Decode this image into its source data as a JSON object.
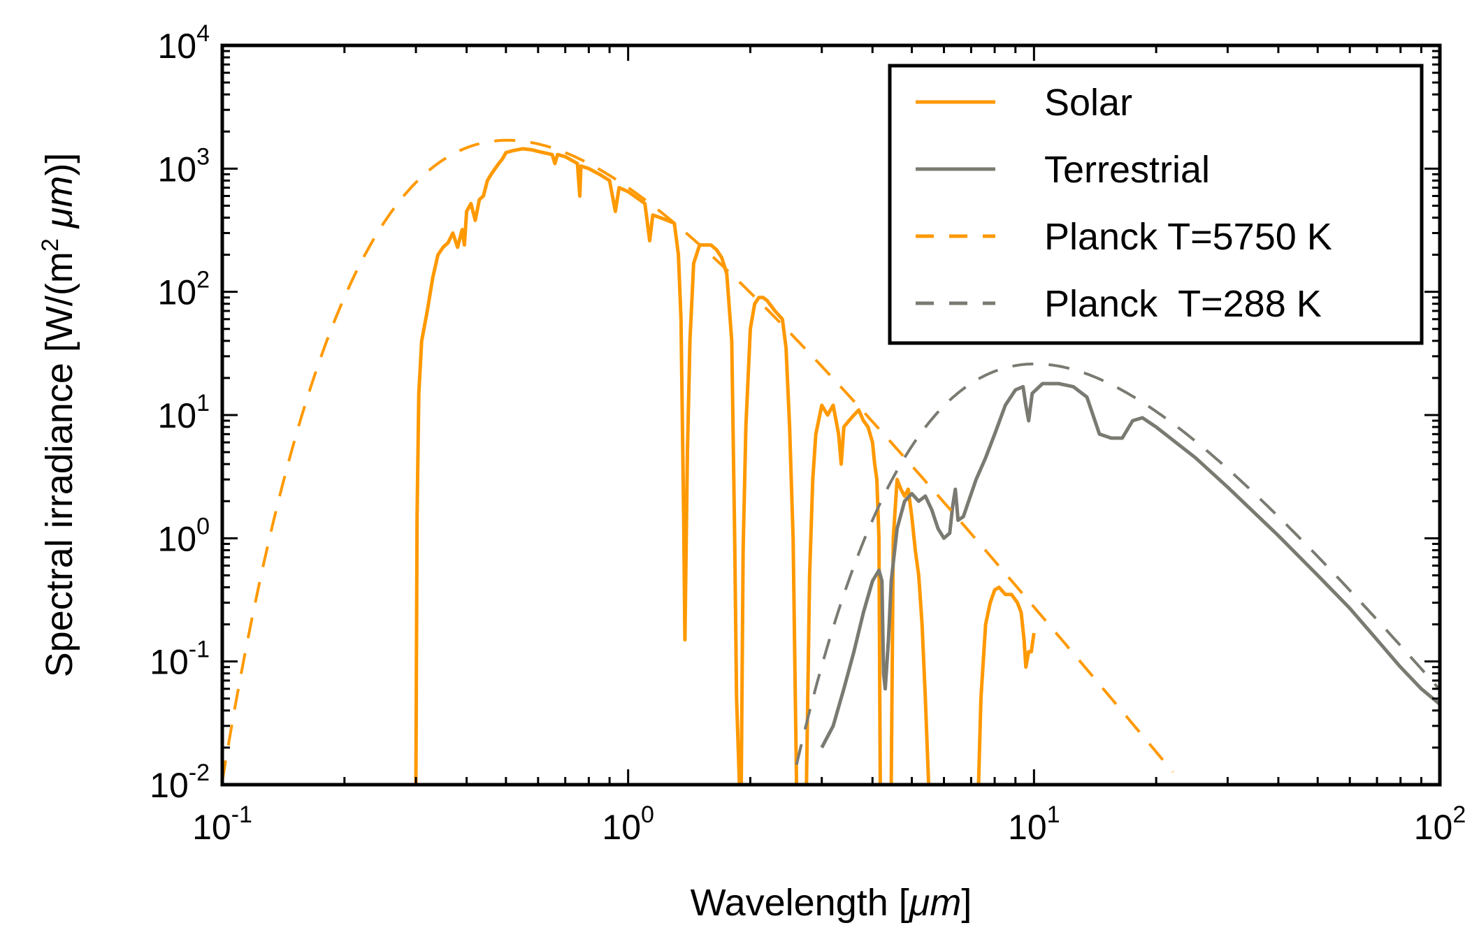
{
  "chart_data": {
    "type": "line",
    "title": "",
    "xlabel_prefix": "Wavelength [",
    "xlabel_unit": "μm",
    "xlabel_suffix": "]",
    "ylabel_prefix": "Spectral irradiance [W/(m",
    "ylabel_sup": "2",
    "ylabel_unit": "μm",
    "ylabel_suffix": ")]",
    "xscale": "log",
    "yscale": "log",
    "xlim": [
      0.1,
      100
    ],
    "ylim": [
      0.01,
      10000
    ],
    "x_ticks": [
      {
        "value": 0.1,
        "base": "10",
        "exp": "-1"
      },
      {
        "value": 1,
        "base": "10",
        "exp": "0"
      },
      {
        "value": 10,
        "base": "10",
        "exp": "1"
      },
      {
        "value": 100,
        "base": "10",
        "exp": "2"
      }
    ],
    "y_ticks": [
      {
        "value": 0.01,
        "base": "10",
        "exp": "-2"
      },
      {
        "value": 0.1,
        "base": "10",
        "exp": "-1"
      },
      {
        "value": 1,
        "base": "10",
        "exp": "0"
      },
      {
        "value": 10,
        "base": "10",
        "exp": "1"
      },
      {
        "value": 100,
        "base": "10",
        "exp": "2"
      },
      {
        "value": 1000,
        "base": "10",
        "exp": "3"
      },
      {
        "value": 10000,
        "base": "10",
        "exp": "4"
      }
    ],
    "grid": false,
    "legend_position": "top-right",
    "series": [
      {
        "name": "Solar",
        "color": "#ff9900",
        "style": "solid",
        "segments": [
          [
            [
              0.3,
              0.01
            ],
            [
              0.302,
              1.5
            ],
            [
              0.305,
              15
            ],
            [
              0.31,
              40
            ],
            [
              0.32,
              70
            ],
            [
              0.33,
              130
            ],
            [
              0.34,
              200
            ],
            [
              0.35,
              230
            ],
            [
              0.36,
              250
            ],
            [
              0.37,
              300
            ],
            [
              0.38,
              230
            ],
            [
              0.39,
              320
            ],
            [
              0.395,
              240
            ],
            [
              0.4,
              450
            ],
            [
              0.41,
              520
            ],
            [
              0.42,
              380
            ],
            [
              0.43,
              560
            ],
            [
              0.44,
              600
            ],
            [
              0.45,
              800
            ],
            [
              0.46,
              900
            ],
            [
              0.47,
              1000
            ],
            [
              0.48,
              1100
            ],
            [
              0.49,
              1200
            ],
            [
              0.5,
              1350
            ],
            [
              0.52,
              1400
            ],
            [
              0.55,
              1450
            ],
            [
              0.58,
              1420
            ],
            [
              0.6,
              1380
            ],
            [
              0.65,
              1300
            ],
            [
              0.66,
              1100
            ],
            [
              0.67,
              1300
            ],
            [
              0.7,
              1250
            ],
            [
              0.75,
              1100
            ],
            [
              0.76,
              600
            ],
            [
              0.765,
              1050
            ],
            [
              0.8,
              1000
            ],
            [
              0.85,
              900
            ],
            [
              0.9,
              800
            ],
            [
              0.93,
              450
            ],
            [
              0.95,
              700
            ],
            [
              1.0,
              650
            ],
            [
              1.05,
              580
            ],
            [
              1.1,
              520
            ],
            [
              1.13,
              260
            ],
            [
              1.15,
              420
            ],
            [
              1.2,
              400
            ],
            [
              1.25,
              380
            ],
            [
              1.3,
              360
            ],
            [
              1.33,
              200
            ],
            [
              1.35,
              60
            ],
            [
              1.37,
              1.5
            ],
            [
              1.38,
              0.15
            ],
            [
              1.4,
              5
            ],
            [
              1.42,
              40
            ],
            [
              1.45,
              170
            ],
            [
              1.5,
              240
            ],
            [
              1.55,
              240
            ],
            [
              1.6,
              240
            ],
            [
              1.65,
              220
            ],
            [
              1.7,
              190
            ],
            [
              1.75,
              140
            ],
            [
              1.8,
              40
            ],
            [
              1.83,
              1
            ],
            [
              1.85,
              0.05
            ],
            [
              1.88,
              0.01
            ]
          ],
          [
            [
              1.9,
              0.01
            ],
            [
              1.92,
              0.8
            ],
            [
              1.95,
              8
            ],
            [
              2.0,
              50
            ],
            [
              2.05,
              80
            ],
            [
              2.1,
              90
            ],
            [
              2.15,
              90
            ],
            [
              2.2,
              85
            ],
            [
              2.3,
              70
            ],
            [
              2.4,
              60
            ],
            [
              2.45,
              35
            ],
            [
              2.5,
              8
            ],
            [
              2.55,
              1
            ],
            [
              2.6,
              0.01
            ]
          ],
          [
            [
              2.75,
              0.01
            ],
            [
              2.8,
              0.5
            ],
            [
              2.85,
              3
            ],
            [
              2.9,
              7
            ],
            [
              3.0,
              12
            ],
            [
              3.1,
              10
            ],
            [
              3.2,
              12
            ],
            [
              3.3,
              7
            ],
            [
              3.35,
              4
            ],
            [
              3.4,
              8
            ],
            [
              3.5,
              9
            ],
            [
              3.6,
              10
            ],
            [
              3.7,
              11
            ],
            [
              3.8,
              9
            ],
            [
              3.9,
              8
            ],
            [
              4.0,
              6
            ],
            [
              4.05,
              4
            ],
            [
              4.1,
              3
            ],
            [
              4.15,
              1
            ],
            [
              4.18,
              0.01
            ]
          ],
          [
            [
              4.45,
              0.01
            ],
            [
              4.5,
              1
            ],
            [
              4.6,
              3
            ],
            [
              4.7,
              2.5
            ],
            [
              4.8,
              2.2
            ],
            [
              4.9,
              2.5
            ],
            [
              5.0,
              1.5
            ],
            [
              5.1,
              0.8
            ],
            [
              5.2,
              0.5
            ],
            [
              5.3,
              0.2
            ],
            [
              5.4,
              0.05
            ],
            [
              5.5,
              0.01
            ]
          ],
          [
            [
              7.3,
              0.01
            ],
            [
              7.4,
              0.05
            ],
            [
              7.6,
              0.2
            ],
            [
              7.8,
              0.3
            ],
            [
              8.0,
              0.38
            ],
            [
              8.2,
              0.4
            ],
            [
              8.5,
              0.35
            ],
            [
              8.8,
              0.35
            ],
            [
              9.1,
              0.3
            ],
            [
              9.3,
              0.25
            ],
            [
              9.45,
              0.15
            ],
            [
              9.55,
              0.09
            ],
            [
              9.7,
              0.12
            ],
            [
              9.85,
              0.12
            ],
            [
              10.0,
              0.17
            ]
          ]
        ]
      },
      {
        "name": "Terrestrial",
        "color": "#7a7a72",
        "style": "solid",
        "segments": [
          [
            [
              3.0,
              0.02
            ],
            [
              3.2,
              0.03
            ],
            [
              3.4,
              0.06
            ],
            [
              3.6,
              0.12
            ],
            [
              3.8,
              0.25
            ],
            [
              4.0,
              0.45
            ],
            [
              4.15,
              0.55
            ],
            [
              4.22,
              0.45
            ],
            [
              4.26,
              0.08
            ],
            [
              4.3,
              0.06
            ],
            [
              4.38,
              0.15
            ],
            [
              4.45,
              0.45
            ],
            [
              4.6,
              1.2
            ],
            [
              4.8,
              2.0
            ],
            [
              5.0,
              2.3
            ],
            [
              5.2,
              2.0
            ],
            [
              5.4,
              2.2
            ],
            [
              5.6,
              1.7
            ],
            [
              5.8,
              1.2
            ],
            [
              6.0,
              1.0
            ],
            [
              6.2,
              1.1
            ],
            [
              6.3,
              1.8
            ],
            [
              6.4,
              2.5
            ],
            [
              6.5,
              1.4
            ],
            [
              6.7,
              1.5
            ],
            [
              6.9,
              2.0
            ],
            [
              7.2,
              3.0
            ],
            [
              7.6,
              4.5
            ],
            [
              8.0,
              7
            ],
            [
              8.5,
              12
            ],
            [
              9.0,
              16
            ],
            [
              9.4,
              17
            ],
            [
              9.55,
              12
            ],
            [
              9.7,
              9
            ],
            [
              9.9,
              15
            ],
            [
              10.5,
              18
            ],
            [
              11.5,
              18
            ],
            [
              12.5,
              17
            ],
            [
              13.5,
              14
            ],
            [
              14.5,
              7
            ],
            [
              15.5,
              6.5
            ],
            [
              16.5,
              6.5
            ],
            [
              17.5,
              9
            ],
            [
              18.5,
              9.5
            ],
            [
              20,
              8
            ],
            [
              25,
              4.5
            ],
            [
              30,
              2.6
            ],
            [
              40,
              1.05
            ],
            [
              50,
              0.5
            ],
            [
              60,
              0.27
            ],
            [
              70,
              0.15
            ],
            [
              80,
              0.09
            ],
            [
              90,
              0.06
            ],
            [
              100,
              0.045
            ]
          ]
        ]
      },
      {
        "name": "Planck T=5750 K",
        "color": "#ff9900",
        "style": "dashed",
        "temperature_K": 5750,
        "x_range": [
          0.1,
          22
        ],
        "peak_y": 1700
      },
      {
        "name": "Planck  T=288 K",
        "color": "#7a7a72",
        "style": "dashed",
        "temperature_K": 288,
        "x_range": [
          2.6,
          100
        ],
        "peak_y": 26
      }
    ],
    "legend": [
      {
        "label": "Solar",
        "color": "#ff9900",
        "style": "solid"
      },
      {
        "label": "Terrestrial",
        "color": "#7a7a72",
        "style": "solid"
      },
      {
        "label": "Planck T=5750 K",
        "color": "#ff9900",
        "style": "dashed"
      },
      {
        "label": "Planck  T=288 K",
        "color": "#7a7a72",
        "style": "dashed"
      }
    ]
  }
}
